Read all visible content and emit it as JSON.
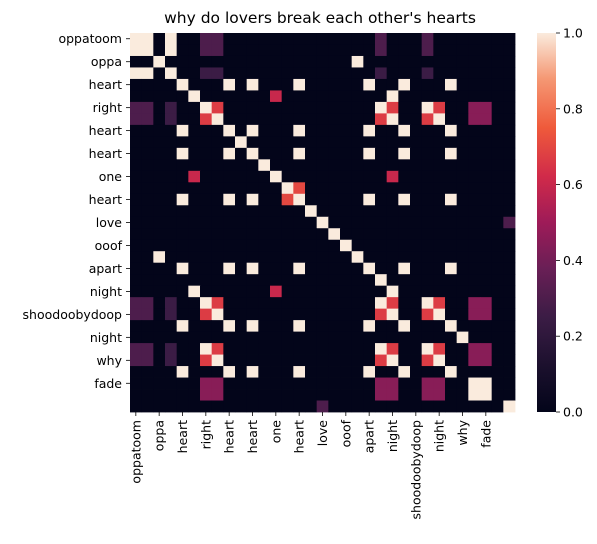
{
  "chart_data": {
    "type": "heatmap",
    "title": "why do lovers break each other's hearts",
    "labels": [
      "oppatoom",
      "oppa",
      "oppatoom",
      "heart",
      "right",
      "right",
      "heart",
      "heart",
      "heart",
      "heart",
      "one",
      "one",
      "heart",
      "heart",
      "love",
      "love",
      "ooof",
      "ooof",
      "apart",
      "apart",
      "night",
      "night",
      "night",
      "shoodoobydoop",
      "night",
      "night",
      "why",
      "why",
      "fade",
      "fade",
      "night",
      "why",
      "fade"
    ],
    "ytick_labels": [
      "oppatoom",
      "oppa",
      "heart",
      "right",
      "heart",
      "heart",
      "one",
      "heart",
      "love",
      "ooof",
      "apart",
      "night",
      "shoodoobydoop",
      "night",
      "why",
      "fade"
    ],
    "xtick_labels": [
      "oppatoom",
      "oppa",
      "heart",
      "right",
      "heart",
      "heart",
      "one",
      "heart",
      "love",
      "ooof",
      "apart",
      "night",
      "shoodoobydoop",
      "night",
      "why",
      "fade"
    ],
    "matrix": [
      [
        1,
        1,
        0,
        1,
        0,
        0,
        0.3,
        0.3,
        0,
        0,
        0,
        0,
        0,
        0,
        0,
        0,
        0,
        0,
        0,
        0,
        0,
        0.3,
        0,
        0,
        0,
        0.3,
        0,
        0,
        0,
        0,
        0,
        0,
        0
      ],
      [
        1,
        1,
        0,
        1,
        0,
        0,
        0.3,
        0.3,
        0,
        0,
        0,
        0,
        0,
        0,
        0,
        0,
        0,
        0,
        0,
        0,
        0,
        0.3,
        0,
        0,
        0,
        0.3,
        0,
        0,
        0,
        0,
        0,
        0,
        0
      ],
      [
        0,
        0,
        1,
        0,
        0,
        0,
        0,
        0,
        0,
        0,
        0,
        0,
        0,
        0,
        0,
        0,
        0,
        0,
        0,
        1,
        0,
        0,
        0,
        0,
        0,
        0,
        0,
        0,
        0,
        0,
        0,
        0,
        0
      ],
      [
        1,
        1,
        0,
        1,
        0,
        0,
        0.25,
        0.25,
        0,
        0,
        0,
        0,
        0,
        0,
        0,
        0,
        0,
        0,
        0,
        0,
        0,
        0.25,
        0,
        0,
        0,
        0.25,
        0,
        0,
        0,
        0,
        0,
        0,
        0
      ],
      [
        0,
        0,
        0,
        0,
        1,
        0,
        0,
        0,
        1,
        0,
        1,
        0,
        0,
        0,
        1,
        0,
        0,
        0,
        0,
        0,
        1,
        0,
        0,
        1,
        0,
        0,
        0,
        1,
        0,
        0,
        0,
        0,
        0
      ],
      [
        0,
        0,
        0,
        0,
        0,
        1,
        0,
        0,
        0,
        0,
        0,
        0,
        0.6,
        0,
        0,
        0,
        0,
        0,
        0,
        0,
        0,
        0,
        1,
        0,
        0,
        0,
        0,
        0,
        0,
        0,
        0,
        0,
        0
      ],
      [
        0.3,
        0.3,
        0,
        0.25,
        0,
        0,
        1,
        0.67,
        0,
        0,
        0,
        0,
        0,
        0,
        0,
        0,
        0,
        0,
        0,
        0,
        0,
        1,
        0.67,
        0,
        0,
        1,
        0.67,
        0,
        0,
        0.45,
        0.45,
        0,
        0
      ],
      [
        0.3,
        0.3,
        0,
        0.25,
        0,
        0,
        0.67,
        1,
        0,
        0,
        0,
        0,
        0,
        0,
        0,
        0,
        0,
        0,
        0,
        0,
        0,
        0.67,
        1,
        0,
        0,
        0.67,
        1,
        0,
        0,
        0.45,
        0.45,
        0,
        0
      ],
      [
        0,
        0,
        0,
        0,
        1,
        0,
        0,
        0,
        1,
        0,
        1,
        0,
        0,
        0,
        1,
        0,
        0,
        0,
        0,
        0,
        1,
        0,
        0,
        1,
        0,
        0,
        0,
        1,
        0,
        0,
        0,
        0,
        0
      ],
      [
        0,
        0,
        0,
        0,
        0,
        0,
        0,
        0,
        0,
        1,
        0,
        0,
        0,
        0,
        0,
        0,
        0,
        0,
        0,
        0,
        0,
        0,
        0,
        0,
        0,
        0,
        0,
        0,
        0,
        0,
        0,
        0,
        0
      ],
      [
        0,
        0,
        0,
        0,
        1,
        0,
        0,
        0,
        1,
        0,
        1,
        0,
        0,
        0,
        1,
        0,
        0,
        0,
        0,
        0,
        1,
        0,
        0,
        1,
        0,
        0,
        0,
        1,
        0,
        0,
        0,
        0,
        0
      ],
      [
        0,
        0,
        0,
        0,
        0,
        0,
        0,
        0,
        0,
        0,
        0,
        1,
        0,
        0,
        0,
        0,
        0,
        0,
        0,
        0,
        0,
        0,
        0,
        0,
        0,
        0,
        0,
        0,
        0,
        0,
        0,
        0,
        0
      ],
      [
        0,
        0,
        0,
        0,
        0,
        0.6,
        0,
        0,
        0,
        0,
        0,
        0,
        1,
        0,
        0,
        0,
        0,
        0,
        0,
        0,
        0,
        0,
        0.6,
        0,
        0,
        0,
        0,
        0,
        0,
        0,
        0,
        0,
        0
      ],
      [
        0,
        0,
        0,
        0,
        0,
        0,
        0,
        0,
        0,
        0,
        0,
        0,
        0,
        1,
        0.7,
        0,
        0,
        0,
        0,
        0,
        0,
        0,
        0,
        0,
        0,
        0,
        0,
        0,
        0,
        0,
        0,
        0,
        0
      ],
      [
        0,
        0,
        0,
        0,
        1,
        0,
        0,
        0,
        1,
        0,
        1,
        0,
        0,
        0.7,
        1,
        0,
        0,
        0,
        0,
        0,
        1,
        0,
        0,
        1,
        0,
        0,
        0,
        1,
        0,
        0,
        0,
        0,
        0
      ],
      [
        0,
        0,
        0,
        0,
        0,
        0,
        0,
        0,
        0,
        0,
        0,
        0,
        0,
        0,
        0,
        1,
        0,
        0,
        0,
        0,
        0,
        0,
        0,
        0,
        0,
        0,
        0,
        0,
        0,
        0,
        0,
        0,
        0
      ],
      [
        0,
        0,
        0,
        0,
        0,
        0,
        0,
        0,
        0,
        0,
        0,
        0,
        0,
        0,
        0,
        0,
        1,
        0,
        0,
        0,
        0,
        0,
        0,
        0,
        0,
        0,
        0,
        0,
        0,
        0,
        0,
        0,
        0.3
      ],
      [
        0,
        0,
        0,
        0,
        0,
        0,
        0,
        0,
        0,
        0,
        0,
        0,
        0,
        0,
        0,
        0,
        0,
        1,
        0,
        0,
        0,
        0,
        0,
        0,
        0,
        0,
        0,
        0,
        0,
        0,
        0,
        0,
        0
      ],
      [
        0,
        0,
        0,
        0,
        0,
        0,
        0,
        0,
        0,
        0,
        0,
        0,
        0,
        0,
        0,
        0,
        0,
        0,
        1,
        0,
        0,
        0,
        0,
        0,
        0,
        0,
        0,
        0,
        0,
        0,
        0,
        0,
        0
      ],
      [
        0,
        0,
        1,
        0,
        0,
        0,
        0,
        0,
        0,
        0,
        0,
        0,
        0,
        0,
        0,
        0,
        0,
        0,
        0,
        1,
        0,
        0,
        0,
        0,
        0,
        0,
        0,
        0,
        0,
        0,
        0,
        0,
        0
      ],
      [
        0,
        0,
        0,
        0,
        1,
        0,
        0,
        0,
        1,
        0,
        1,
        0,
        0,
        0,
        1,
        0,
        0,
        0,
        0,
        0,
        1,
        0,
        0,
        1,
        0,
        0,
        0,
        1,
        0,
        0,
        0,
        0,
        0
      ],
      [
        0,
        0,
        0,
        0,
        0,
        0,
        0,
        0,
        0,
        0,
        0,
        0,
        0,
        0,
        0,
        0,
        0,
        0,
        0,
        0,
        0,
        1,
        0,
        0,
        0,
        0,
        0,
        0,
        0,
        0,
        0,
        0,
        0
      ],
      [
        0,
        0,
        0,
        0,
        0,
        1,
        0,
        0,
        0,
        0,
        0,
        0,
        0.6,
        0,
        0,
        0,
        0,
        0,
        0,
        0,
        0,
        0,
        1,
        0,
        0,
        0,
        0,
        0,
        0,
        0,
        0,
        0,
        0
      ],
      [
        0.3,
        0.3,
        0,
        0.25,
        0,
        0,
        1,
        0.67,
        0,
        0,
        0,
        0,
        0,
        0,
        0,
        0,
        0,
        0,
        0,
        0,
        0,
        1,
        0.67,
        0,
        0,
        1,
        0.67,
        0,
        0,
        0.45,
        0.45,
        0,
        0
      ],
      [
        0.3,
        0.3,
        0,
        0.25,
        0,
        0,
        0.67,
        1,
        0,
        0,
        0,
        0,
        0,
        0,
        0,
        0,
        0,
        0,
        0,
        0,
        0,
        0.67,
        1,
        0,
        0,
        0.67,
        1,
        0,
        0,
        0.45,
        0.45,
        0,
        0
      ],
      [
        0,
        0,
        0,
        0,
        1,
        0,
        0,
        0,
        1,
        0,
        1,
        0,
        0,
        0,
        1,
        0,
        0,
        0,
        0,
        0,
        1,
        0,
        0,
        1,
        0,
        0,
        0,
        1,
        0,
        0,
        0,
        0,
        0
      ],
      [
        0,
        0,
        0,
        0,
        0,
        0,
        0,
        0,
        0,
        0,
        0,
        0,
        0,
        0,
        0,
        0,
        0,
        0,
        0,
        0,
        0,
        0,
        0,
        0,
        0,
        0,
        0,
        0,
        1,
        0,
        0,
        0,
        0
      ],
      [
        0.3,
        0.3,
        0,
        0.25,
        0,
        0,
        1,
        0.67,
        0,
        0,
        0,
        0,
        0,
        0,
        0,
        0,
        0,
        0,
        0,
        0,
        0,
        1,
        0.67,
        0,
        0,
        1,
        0.67,
        0,
        0,
        0.45,
        0.45,
        0,
        0
      ],
      [
        0.3,
        0.3,
        0,
        0.25,
        0,
        0,
        0.67,
        1,
        0,
        0,
        0,
        0,
        0,
        0,
        0,
        0,
        0,
        0,
        0,
        0,
        0,
        0.67,
        1,
        0,
        0,
        0.67,
        1,
        0,
        0,
        0.45,
        0.45,
        0,
        0
      ],
      [
        0,
        0,
        0,
        0,
        1,
        0,
        0,
        0,
        1,
        0,
        1,
        0,
        0,
        0,
        1,
        0,
        0,
        0,
        0,
        0,
        1,
        0,
        0,
        1,
        0,
        0,
        0,
        1,
        0,
        0,
        0,
        0,
        0
      ],
      [
        0,
        0,
        0,
        0,
        0,
        0,
        0.45,
        0.45,
        0,
        0,
        0,
        0,
        0,
        0,
        0,
        0,
        0,
        0,
        0,
        0,
        0,
        0.45,
        0.45,
        0,
        0,
        0.45,
        0.45,
        0,
        0,
        1,
        1,
        0,
        0
      ],
      [
        0,
        0,
        0,
        0,
        0,
        0,
        0.45,
        0.45,
        0,
        0,
        0,
        0,
        0,
        0,
        0,
        0,
        0,
        0,
        0,
        0,
        0,
        0.45,
        0.45,
        0,
        0,
        0.45,
        0.45,
        0,
        0,
        1,
        1,
        0,
        0
      ],
      [
        0,
        0,
        0,
        0,
        0,
        0,
        0,
        0,
        0,
        0,
        0,
        0,
        0,
        0,
        0,
        0,
        0.3,
        0,
        0,
        0,
        0,
        0,
        0,
        0,
        0,
        0,
        0,
        0,
        0,
        0,
        0,
        0,
        1
      ]
    ],
    "colorbar": {
      "min": 0,
      "max": 1,
      "ticks": [
        "0.0",
        "0.2",
        "0.4",
        "0.6",
        "0.8",
        "1.0"
      ],
      "colormap": "rocket"
    },
    "grid": false
  }
}
